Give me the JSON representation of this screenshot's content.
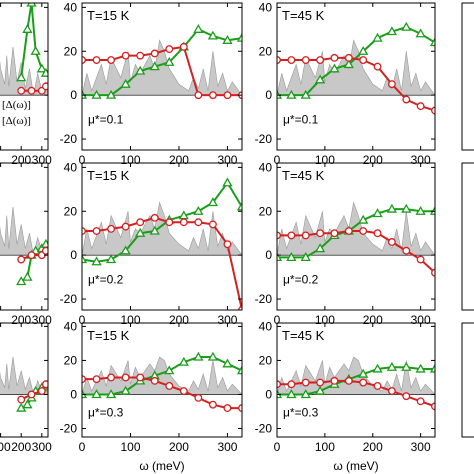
{
  "figure": {
    "xlabel": "ω (meV)",
    "legend": [
      "[Δ(ω)]",
      "[Δ(ω)]"
    ]
  },
  "colors": {
    "red_series": "#d42020",
    "green_series": "#1a9e1a",
    "background_fill": "#c8c8c8",
    "background_stroke": "#9a9a9a"
  },
  "chart_data": [
    {
      "type": "line",
      "row": 0,
      "col": 0,
      "label": "",
      "mu": "",
      "xlim": [
        0,
        330
      ],
      "ylim": [
        -25,
        42
      ],
      "xticks": [
        200,
        300
      ],
      "yticks": [],
      "background": {
        "x": [
          0,
          20,
          30,
          40,
          60,
          80,
          100,
          120,
          130,
          140,
          160,
          180,
          200,
          220,
          240,
          260,
          280,
          300,
          320,
          330
        ],
        "y": [
          0,
          10,
          5,
          25,
          8,
          30,
          12,
          5,
          18,
          4,
          22,
          6,
          15,
          3,
          12,
          0,
          10,
          2,
          6,
          0
        ]
      },
      "red": {
        "x": [
          200,
          250,
          300,
          320
        ],
        "y": [
          2,
          2,
          2,
          4
        ]
      },
      "green": {
        "x": [
          200,
          230,
          250,
          270,
          300,
          320
        ],
        "y": [
          8,
          30,
          42,
          20,
          12,
          10
        ]
      }
    },
    {
      "type": "line",
      "row": 0,
      "col": 1,
      "label": "T=15 K",
      "mu": "μ*=0.1",
      "xlim": [
        0,
        330
      ],
      "ylim": [
        -25,
        42
      ],
      "xticks": [
        0,
        100,
        200,
        300
      ],
      "yticks": [
        -20,
        0,
        20,
        40
      ],
      "background": {
        "x": [
          0,
          10,
          20,
          40,
          50,
          60,
          80,
          95,
          100,
          110,
          120,
          140,
          150,
          160,
          170,
          180,
          200,
          220,
          230,
          240,
          250,
          260,
          270,
          280,
          290,
          300,
          310,
          320,
          330
        ],
        "y": [
          0,
          10,
          2,
          14,
          5,
          17,
          8,
          20,
          6,
          14,
          10,
          18,
          12,
          25,
          20,
          12,
          5,
          2,
          8,
          3,
          12,
          2,
          20,
          4,
          10,
          2,
          6,
          3,
          0
        ]
      },
      "red": {
        "x": [
          0,
          30,
          60,
          90,
          120,
          150,
          180,
          210,
          240,
          270,
          300,
          330
        ],
        "y": [
          16,
          16,
          16,
          18,
          18,
          19,
          21,
          22,
          0,
          0,
          0,
          0
        ]
      },
      "green": {
        "x": [
          0,
          30,
          60,
          90,
          120,
          150,
          180,
          210,
          240,
          270,
          300,
          330
        ],
        "y": [
          0,
          0,
          0,
          5,
          11,
          13,
          15,
          22,
          30,
          27,
          25,
          26
        ]
      }
    },
    {
      "type": "line",
      "row": 0,
      "col": 2,
      "label": "T=45 K",
      "mu": "μ*=0.1",
      "xlim": [
        0,
        330
      ],
      "ylim": [
        -25,
        42
      ],
      "xticks": [
        0,
        100,
        200,
        300
      ],
      "yticks": [
        -20,
        0,
        20,
        40
      ],
      "background": {
        "x": [
          0,
          10,
          20,
          40,
          50,
          60,
          80,
          95,
          100,
          110,
          120,
          140,
          150,
          160,
          170,
          180,
          200,
          220,
          230,
          240,
          250,
          260,
          270,
          280,
          290,
          300,
          310,
          320,
          330
        ],
        "y": [
          0,
          10,
          2,
          14,
          5,
          17,
          8,
          20,
          6,
          14,
          10,
          18,
          12,
          25,
          20,
          12,
          5,
          2,
          8,
          3,
          12,
          2,
          20,
          4,
          10,
          2,
          6,
          3,
          0
        ]
      },
      "red": {
        "x": [
          0,
          30,
          60,
          90,
          120,
          150,
          180,
          210,
          240,
          270,
          300,
          330
        ],
        "y": [
          16,
          16,
          16,
          16,
          17,
          17,
          16,
          13,
          5,
          -2,
          -5,
          -7
        ]
      },
      "green": {
        "x": [
          0,
          30,
          60,
          90,
          120,
          150,
          180,
          210,
          240,
          270,
          300,
          330
        ],
        "y": [
          0,
          0,
          0,
          7,
          12,
          14,
          20,
          26,
          29,
          31,
          28,
          24
        ]
      }
    },
    {
      "type": "line",
      "row": 1,
      "col": 0,
      "label": "",
      "mu": "",
      "xlim": [
        0,
        330
      ],
      "ylim": [
        -25,
        42
      ],
      "xticks": [
        200,
        300
      ],
      "yticks": [],
      "background": {
        "x": [
          0,
          20,
          30,
          40,
          60,
          80,
          100,
          120,
          130,
          140,
          160,
          180,
          200,
          220,
          240,
          260,
          280,
          300,
          320,
          330
        ],
        "y": [
          0,
          15,
          4,
          20,
          8,
          25,
          10,
          4,
          18,
          3,
          22,
          5,
          14,
          3,
          10,
          0,
          8,
          2,
          5,
          0
        ]
      },
      "red": {
        "x": [
          200,
          250,
          300,
          320
        ],
        "y": [
          -2,
          0,
          0,
          2
        ]
      },
      "green": {
        "x": [
          200,
          230,
          250,
          270,
          300,
          320
        ],
        "y": [
          -12,
          -10,
          0,
          2,
          3,
          5
        ]
      }
    },
    {
      "type": "line",
      "row": 1,
      "col": 1,
      "label": "T=15 K",
      "mu": "μ*=0.2",
      "xlim": [
        0,
        330
      ],
      "ylim": [
        -25,
        42
      ],
      "xticks": [
        0,
        100,
        200,
        300
      ],
      "yticks": [
        -20,
        0,
        20,
        40
      ],
      "background": {
        "x": [
          0,
          10,
          20,
          40,
          50,
          60,
          80,
          95,
          100,
          110,
          120,
          140,
          150,
          160,
          170,
          180,
          200,
          220,
          230,
          240,
          250,
          260,
          270,
          280,
          290,
          300,
          310,
          320,
          330
        ],
        "y": [
          0,
          12,
          3,
          15,
          5,
          18,
          8,
          20,
          6,
          12,
          10,
          18,
          12,
          24,
          18,
          10,
          5,
          2,
          8,
          3,
          12,
          2,
          20,
          4,
          10,
          2,
          6,
          3,
          0
        ]
      },
      "red": {
        "x": [
          0,
          30,
          60,
          90,
          120,
          150,
          180,
          210,
          240,
          270,
          300,
          330
        ],
        "y": [
          11,
          11,
          12,
          13,
          15,
          17,
          15,
          15,
          15,
          14,
          5,
          -25
        ]
      },
      "green": {
        "x": [
          0,
          30,
          60,
          90,
          120,
          150,
          180,
          210,
          240,
          270,
          300,
          330
        ],
        "y": [
          -2,
          -3,
          -2,
          2,
          10,
          11,
          16,
          18,
          20,
          24,
          33,
          22
        ]
      }
    },
    {
      "type": "line",
      "row": 1,
      "col": 2,
      "label": "T=45 K",
      "mu": "μ*=0.2",
      "xlim": [
        0,
        330
      ],
      "ylim": [
        -25,
        42
      ],
      "xticks": [
        0,
        100,
        200,
        300
      ],
      "yticks": [
        -20,
        0,
        20,
        40
      ],
      "background": {
        "x": [
          0,
          10,
          20,
          40,
          50,
          60,
          80,
          95,
          100,
          110,
          120,
          140,
          150,
          160,
          170,
          180,
          200,
          220,
          230,
          240,
          250,
          260,
          270,
          280,
          290,
          300,
          310,
          320,
          330
        ],
        "y": [
          0,
          12,
          3,
          15,
          5,
          18,
          8,
          20,
          6,
          12,
          10,
          18,
          12,
          24,
          18,
          10,
          5,
          2,
          8,
          3,
          12,
          2,
          20,
          4,
          10,
          2,
          6,
          3,
          0
        ]
      },
      "red": {
        "x": [
          0,
          30,
          60,
          90,
          120,
          150,
          180,
          210,
          240,
          270,
          300,
          330
        ],
        "y": [
          9,
          9,
          9,
          10,
          10,
          11,
          11,
          10,
          6,
          2,
          -2,
          -8
        ]
      },
      "green": {
        "x": [
          0,
          30,
          60,
          90,
          120,
          150,
          180,
          210,
          240,
          270,
          300,
          330
        ],
        "y": [
          -1,
          -1,
          -1,
          3,
          9,
          11,
          16,
          19,
          21,
          21,
          20,
          20
        ]
      }
    },
    {
      "type": "line",
      "row": 2,
      "col": 0,
      "label": "",
      "mu": "",
      "xlim": [
        0,
        330
      ],
      "ylim": [
        -25,
        42
      ],
      "xticks": [
        0,
        100,
        200,
        300
      ],
      "yticks": [],
      "background": {
        "x": [
          0,
          20,
          30,
          40,
          60,
          80,
          100,
          120,
          130,
          140,
          160,
          180,
          200,
          220,
          240,
          260,
          280,
          300,
          320,
          330
        ],
        "y": [
          0,
          15,
          4,
          20,
          8,
          25,
          10,
          4,
          18,
          3,
          22,
          5,
          14,
          3,
          10,
          0,
          8,
          2,
          5,
          0
        ]
      },
      "red": {
        "x": [
          200,
          250,
          300,
          320
        ],
        "y": [
          -3,
          0,
          2,
          6
        ]
      },
      "green": {
        "x": [
          200,
          230,
          250,
          270,
          300,
          320
        ],
        "y": [
          -8,
          -6,
          -2,
          2,
          4,
          5
        ]
      }
    },
    {
      "type": "line",
      "row": 2,
      "col": 1,
      "label": "T=15 K",
      "mu": "μ*=0.3",
      "xlim": [
        0,
        330
      ],
      "ylim": [
        -25,
        42
      ],
      "xticks": [
        0,
        100,
        200,
        300
      ],
      "yticks": [
        -20,
        0,
        20,
        40
      ],
      "background": {
        "x": [
          0,
          10,
          20,
          40,
          50,
          60,
          80,
          95,
          100,
          110,
          120,
          140,
          150,
          160,
          170,
          180,
          200,
          220,
          230,
          240,
          250,
          260,
          270,
          280,
          290,
          300,
          310,
          320,
          330
        ],
        "y": [
          0,
          10,
          2,
          14,
          5,
          17,
          8,
          20,
          6,
          16,
          10,
          18,
          14,
          22,
          20,
          12,
          5,
          2,
          8,
          3,
          12,
          2,
          20,
          4,
          10,
          2,
          6,
          3,
          0
        ]
      },
      "red": {
        "x": [
          0,
          30,
          60,
          90,
          120,
          150,
          180,
          210,
          240,
          270,
          300,
          330
        ],
        "y": [
          9,
          9,
          10,
          10,
          10,
          8,
          5,
          2,
          -2,
          -6,
          -8,
          -8
        ]
      },
      "green": {
        "x": [
          0,
          30,
          60,
          90,
          120,
          150,
          180,
          210,
          240,
          270,
          300,
          330
        ],
        "y": [
          0,
          0,
          0,
          2,
          8,
          11,
          14,
          19,
          22,
          22,
          18,
          14
        ]
      }
    },
    {
      "type": "line",
      "row": 2,
      "col": 2,
      "label": "T=45 K",
      "mu": "μ*=0.3",
      "xlim": [
        0,
        330
      ],
      "ylim": [
        -25,
        42
      ],
      "xticks": [
        0,
        100,
        200,
        300
      ],
      "yticks": [
        -20,
        0,
        20,
        40
      ],
      "background": {
        "x": [
          0,
          10,
          20,
          40,
          50,
          60,
          80,
          95,
          100,
          110,
          120,
          140,
          150,
          160,
          170,
          180,
          200,
          220,
          230,
          240,
          250,
          260,
          270,
          280,
          290,
          300,
          310,
          320,
          330
        ],
        "y": [
          0,
          10,
          2,
          14,
          5,
          17,
          8,
          20,
          6,
          16,
          10,
          18,
          14,
          22,
          20,
          12,
          5,
          2,
          8,
          3,
          12,
          2,
          20,
          4,
          10,
          2,
          6,
          3,
          0
        ]
      },
      "red": {
        "x": [
          0,
          30,
          60,
          90,
          120,
          150,
          180,
          210,
          240,
          270,
          300,
          330
        ],
        "y": [
          6,
          6,
          7,
          7,
          8,
          8,
          7,
          5,
          2,
          -1,
          -4,
          -7
        ]
      },
      "green": {
        "x": [
          0,
          30,
          60,
          90,
          120,
          150,
          180,
          210,
          240,
          270,
          300,
          330
        ],
        "y": [
          0,
          0,
          0,
          2,
          6,
          9,
          12,
          15,
          16,
          16,
          15,
          15
        ]
      }
    }
  ]
}
